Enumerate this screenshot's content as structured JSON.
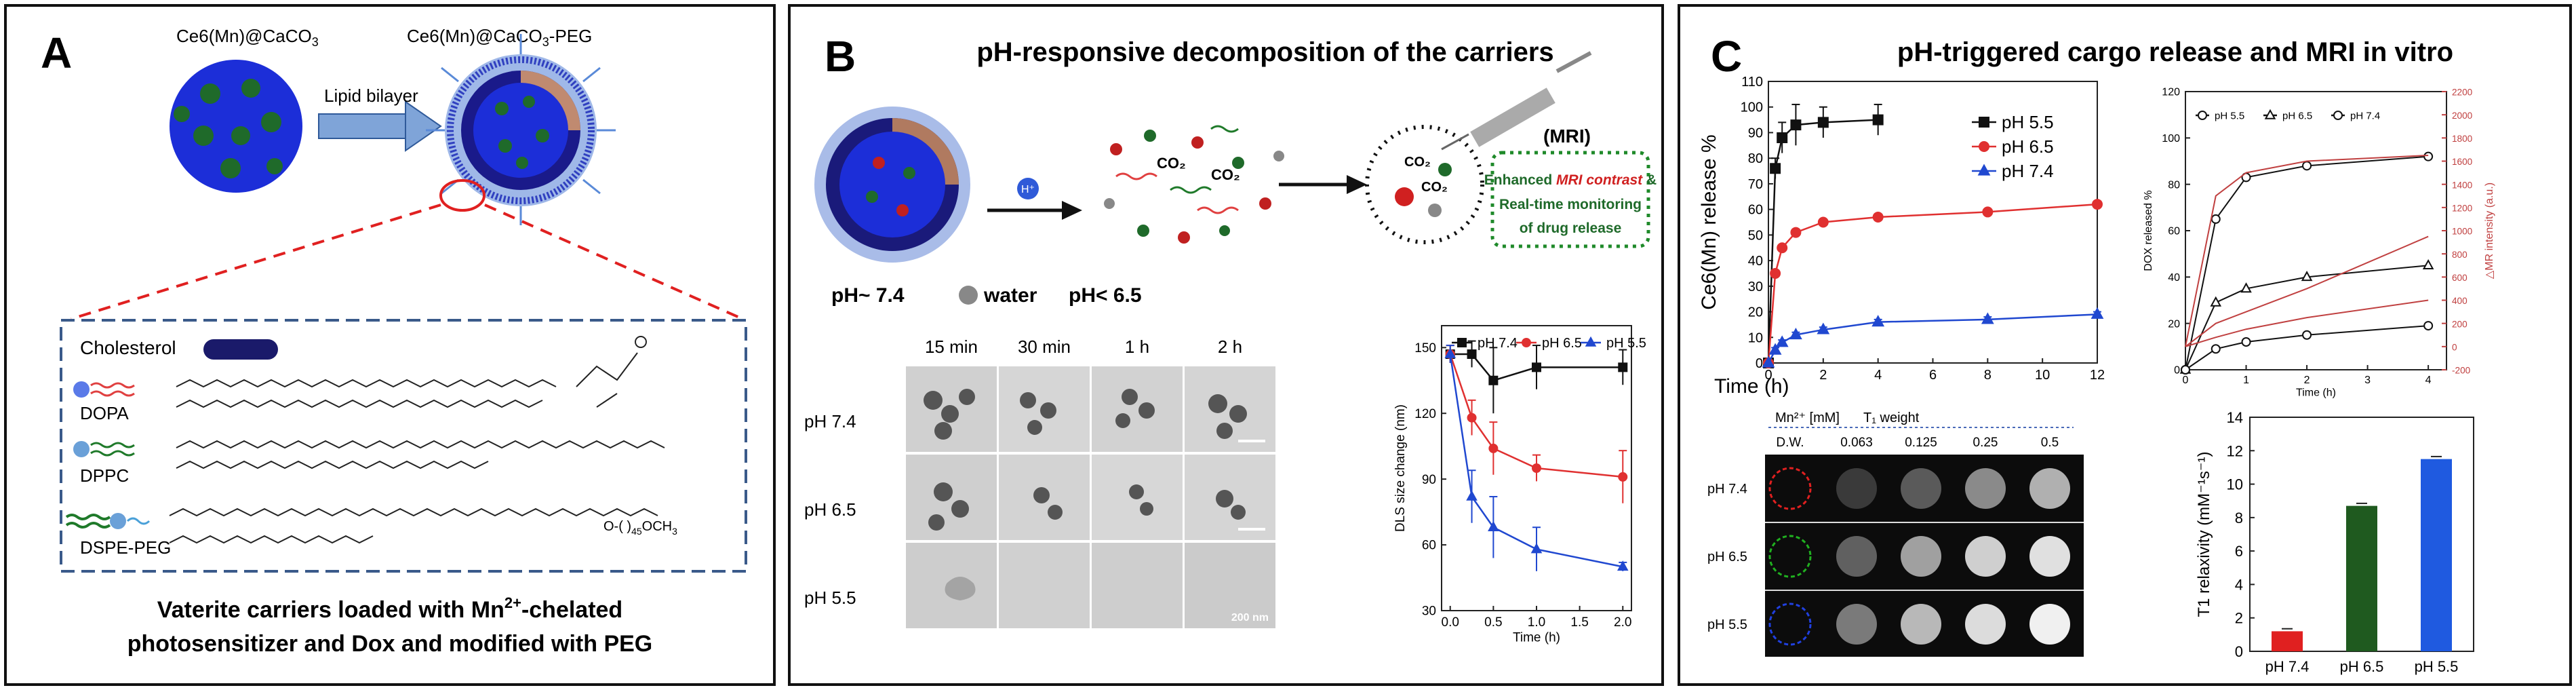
{
  "panelA": {
    "letter": "A",
    "label_left": "Ce6(Mn)@CaCO",
    "label_left_sub": "3",
    "label_right": "Ce6(Mn)@CaCO",
    "label_right_sub": "3",
    "label_right_suffix": "-PEG",
    "arrow_label": "Lipid bilayer",
    "lipids": [
      "Cholesterol",
      "DOPA",
      "DPPC",
      "DSPE-PEG"
    ],
    "peg_tail": "O-(  )",
    "peg_n": "45",
    "peg_end": "OCH",
    "peg_end_sub": "3",
    "caption_line1_a": "Vaterite carriers loaded with Mn",
    "caption_line1_sup": "2+",
    "caption_line1_b": "-chelated",
    "caption_line2": "photosensitizer and Dox and modified with PEG"
  },
  "panelB": {
    "letter": "B",
    "title": "pH-responsive decomposition of the carriers",
    "mri": "(MRI)",
    "box_line1_a": "Enhanced ",
    "box_line1_b": "MRI contrast",
    "box_line1_c": " &",
    "box_line2": "Real-time monitoring",
    "box_line3": "of drug release",
    "ph_left": "pH~ 7.4",
    "water": "water",
    "ph_right": "pH< 6.5",
    "hplus": "H⁺",
    "co2": "CO₂",
    "tem_cols": [
      "15 min",
      "30 min",
      "1 h",
      "2 h"
    ],
    "tem_rows": [
      "pH 7.4",
      "pH 6.5",
      "pH 5.5"
    ],
    "scale": "200 nm"
  },
  "panelC": {
    "letter": "C",
    "title": "pH-triggered cargo release and MRI in vitro",
    "mri_header_a": "Mn²⁺ [mM]",
    "mri_header_b": "T₁ weight",
    "mri_cols": [
      "D.W.",
      "0.063",
      "0.125",
      "0.25",
      "0.5"
    ],
    "mri_rows": [
      "pH 7.4",
      "pH 6.5",
      "pH 5.5"
    ]
  },
  "chart_data": [
    {
      "id": "dls",
      "type": "line",
      "xlabel": "Time (h)",
      "ylabel": "DLS size change (nm)",
      "xlim": [
        -0.1,
        2.1
      ],
      "ylim": [
        30,
        160
      ],
      "xticks": [
        0.0,
        0.5,
        1.0,
        1.5,
        2.0
      ],
      "yticks": [
        30,
        60,
        90,
        120,
        150
      ],
      "legend": "top",
      "x": [
        0,
        0.25,
        0.5,
        1.0,
        2.0
      ],
      "series": [
        {
          "name": "pH 7.4",
          "color": "#111111",
          "marker": "square",
          "values": [
            147,
            147,
            135,
            141,
            141
          ],
          "err": [
            4,
            6,
            15,
            10,
            8
          ]
        },
        {
          "name": "pH 6.5",
          "color": "#e03030",
          "marker": "circle",
          "values": [
            147,
            118,
            104,
            95,
            91
          ],
          "err": [
            4,
            8,
            12,
            6,
            12
          ]
        },
        {
          "name": "pH 5.5",
          "color": "#2048d0",
          "marker": "triangle",
          "values": [
            147,
            82,
            68,
            58,
            50
          ],
          "err": [
            4,
            12,
            14,
            10,
            2
          ]
        }
      ]
    },
    {
      "id": "ce6release",
      "type": "line",
      "xlabel": "Time (h)",
      "ylabel": "Ce6(Mn)  release %",
      "xlim": [
        0,
        12
      ],
      "ylim": [
        0,
        110
      ],
      "xticks": [
        0,
        2,
        4,
        6,
        8,
        10,
        12
      ],
      "yticks": [
        0,
        10,
        20,
        30,
        40,
        50,
        60,
        70,
        80,
        90,
        100,
        110
      ],
      "legend": "top-right",
      "series": [
        {
          "name": "pH 5.5",
          "color": "#111111",
          "marker": "square",
          "x": [
            0,
            0.25,
            0.5,
            1,
            2,
            4
          ],
          "values": [
            0,
            76,
            88,
            93,
            94,
            95
          ],
          "err": [
            0,
            4,
            6,
            8,
            6,
            6
          ]
        },
        {
          "name": "pH 6.5",
          "color": "#e03030",
          "marker": "circle",
          "x": [
            0,
            0.25,
            0.5,
            1,
            2,
            4,
            8,
            12
          ],
          "values": [
            0,
            35,
            45,
            51,
            55,
            57,
            59,
            62
          ],
          "err": [
            0,
            1,
            1,
            1,
            1,
            1,
            1,
            1
          ]
        },
        {
          "name": "pH 7.4",
          "color": "#2048d0",
          "marker": "triangle",
          "x": [
            0,
            0.25,
            0.5,
            1,
            2,
            4,
            8,
            12
          ],
          "values": [
            0,
            5,
            8,
            11,
            13,
            16,
            17,
            19
          ],
          "err": [
            0,
            1,
            1,
            1,
            1,
            1,
            1,
            1
          ]
        }
      ]
    },
    {
      "id": "doxrelease",
      "type": "line",
      "xlabel": "Time (h)",
      "ylabel": "DOX released %",
      "y2label": "△MR intensity (a.u.)",
      "xlim": [
        0,
        4.3
      ],
      "ylim": [
        0,
        120
      ],
      "y2lim": [
        -200,
        2200
      ],
      "xticks": [
        0,
        1,
        2,
        3,
        4
      ],
      "yticks": [
        0,
        20,
        40,
        60,
        80,
        100,
        120
      ],
      "y2ticks": [
        -200,
        0,
        200,
        400,
        600,
        800,
        1000,
        1200,
        1400,
        1600,
        1800,
        2000,
        2200
      ],
      "legend": "top",
      "series": [
        {
          "name": "pH 5.5",
          "color": "#111111",
          "marker": "circle",
          "x": [
            0,
            0.5,
            1,
            2,
            4
          ],
          "values": [
            0,
            65,
            83,
            88,
            92
          ]
        },
        {
          "name": "pH 6.5",
          "color": "#111111",
          "marker": "triangle",
          "x": [
            0,
            0.5,
            1,
            2,
            4
          ],
          "values": [
            0,
            29,
            35,
            40,
            45
          ]
        },
        {
          "name": "pH 7.4",
          "color": "#111111",
          "marker": "circle",
          "x": [
            0,
            0.5,
            1,
            2,
            4
          ],
          "values": [
            0,
            9,
            12,
            15,
            19
          ]
        },
        {
          "name": "MRI pH 5.5",
          "color": "#c04040",
          "marker": "none",
          "axis": "y2",
          "x": [
            0,
            0.5,
            1,
            2,
            4
          ],
          "values": [
            0,
            1300,
            1500,
            1600,
            1650
          ]
        },
        {
          "name": "MRI pH 6.5",
          "color": "#c04040",
          "marker": "none",
          "axis": "y2",
          "x": [
            0,
            0.5,
            1,
            2,
            4
          ],
          "values": [
            0,
            200,
            300,
            500,
            950
          ]
        },
        {
          "name": "MRI pH 7.4",
          "color": "#c04040",
          "marker": "none",
          "axis": "y2",
          "x": [
            0,
            0.5,
            1,
            2,
            4
          ],
          "values": [
            0,
            80,
            150,
            250,
            400
          ]
        }
      ]
    },
    {
      "id": "relaxivity",
      "type": "bar",
      "ylabel": "T1 relaxivity (mM⁻¹s⁻¹)",
      "categories": [
        "pH 7.4",
        "pH 6.5",
        "pH 5.5"
      ],
      "values": [
        1.2,
        8.7,
        11.5
      ],
      "colors": [
        "#e02020",
        "#1f5a1f",
        "#1f5ae0"
      ],
      "ylim": [
        0,
        14
      ],
      "yticks": [
        0,
        2,
        4,
        6,
        8,
        10,
        12,
        14
      ]
    }
  ]
}
